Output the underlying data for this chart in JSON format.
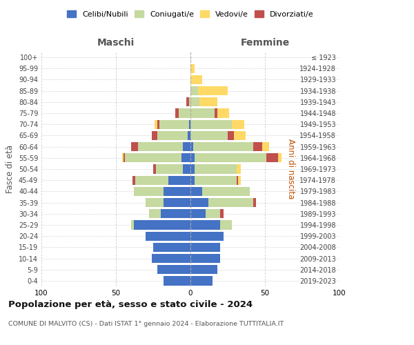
{
  "age_groups": [
    "0-4",
    "5-9",
    "10-14",
    "15-19",
    "20-24",
    "25-29",
    "30-34",
    "35-39",
    "40-44",
    "45-49",
    "50-54",
    "55-59",
    "60-64",
    "65-69",
    "70-74",
    "75-79",
    "80-84",
    "85-89",
    "90-94",
    "95-99",
    "100+"
  ],
  "birth_years": [
    "2019-2023",
    "2014-2018",
    "2009-2013",
    "2004-2008",
    "1999-2003",
    "1994-1998",
    "1989-1993",
    "1984-1988",
    "1979-1983",
    "1974-1978",
    "1969-1973",
    "1964-1968",
    "1959-1963",
    "1954-1958",
    "1949-1953",
    "1944-1948",
    "1939-1943",
    "1934-1938",
    "1929-1933",
    "1924-1928",
    "≤ 1923"
  ],
  "colors": {
    "celibi_nubili": "#4472C4",
    "coniugati": "#C5D9A0",
    "vedovi": "#FFD966",
    "divorziati": "#C0504D"
  },
  "males": {
    "celibi": [
      18,
      22,
      26,
      25,
      30,
      38,
      20,
      18,
      18,
      15,
      5,
      6,
      5,
      2,
      1,
      0,
      0,
      0,
      0,
      0,
      0
    ],
    "coniugati": [
      0,
      0,
      0,
      0,
      0,
      2,
      8,
      12,
      20,
      22,
      18,
      38,
      30,
      20,
      20,
      8,
      1,
      0,
      0,
      0,
      0
    ],
    "vedovi": [
      0,
      0,
      0,
      0,
      0,
      0,
      0,
      0,
      0,
      0,
      0,
      1,
      0,
      0,
      2,
      0,
      0,
      0,
      0,
      0,
      0
    ],
    "divorziati": [
      0,
      0,
      0,
      0,
      0,
      0,
      0,
      0,
      0,
      2,
      2,
      1,
      5,
      4,
      1,
      2,
      2,
      0,
      0,
      0,
      0
    ]
  },
  "females": {
    "nubili": [
      15,
      18,
      20,
      20,
      22,
      20,
      10,
      12,
      8,
      3,
      3,
      3,
      2,
      0,
      0,
      0,
      0,
      0,
      0,
      0,
      0
    ],
    "coniugate": [
      0,
      0,
      0,
      0,
      0,
      8,
      10,
      30,
      32,
      28,
      28,
      48,
      40,
      25,
      28,
      16,
      6,
      5,
      0,
      0,
      0
    ],
    "vedove": [
      0,
      0,
      0,
      0,
      0,
      0,
      0,
      0,
      0,
      2,
      3,
      2,
      5,
      8,
      8,
      8,
      12,
      20,
      8,
      3,
      0
    ],
    "divorziate": [
      0,
      0,
      0,
      0,
      0,
      0,
      2,
      2,
      0,
      1,
      0,
      8,
      6,
      4,
      0,
      2,
      0,
      0,
      0,
      0,
      0
    ]
  },
  "title": "Popolazione per età, sesso e stato civile - 2024",
  "subtitle": "COMUNE DI MALVITO (CS) - Dati ISTAT 1° gennaio 2024 - Elaborazione TUTTITALIA.IT",
  "xlabel_left": "Maschi",
  "xlabel_right": "Femmine",
  "ylabel_left": "Fasce di età",
  "ylabel_right": "Anni di nascita",
  "xlim": 100,
  "legend_labels": [
    "Celibi/Nubili",
    "Coniugati/e",
    "Vedovi/e",
    "Divorziati/e"
  ],
  "background_color": "#ffffff",
  "grid_color": "#cccccc"
}
